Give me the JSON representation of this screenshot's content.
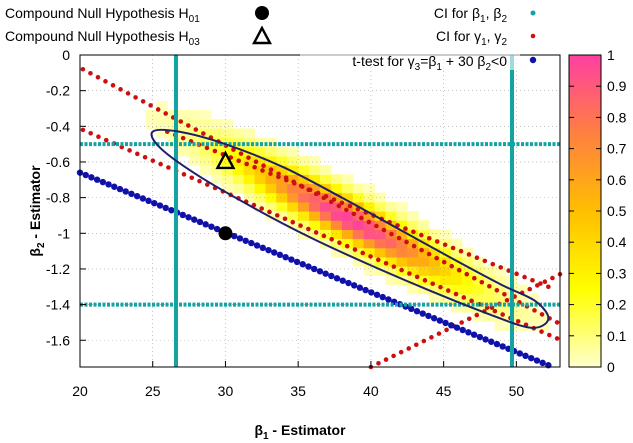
{
  "chart_data": {
    "type": "heatmap",
    "xlabel": "β₁ - Estimator",
    "ylabel": "β₂ - Estimator",
    "xlim": [
      20,
      53
    ],
    "ylim": [
      -1.75,
      0
    ],
    "xticks": [
      20,
      25,
      30,
      35,
      40,
      45,
      50
    ],
    "yticks": [
      0,
      -0.2,
      -0.4,
      -0.6,
      -0.8,
      -1,
      -1.2,
      -1.4,
      -1.6
    ],
    "grid": true,
    "colorbar": {
      "range": [
        0,
        1
      ],
      "ticks": [
        0,
        0.1,
        0.2,
        0.3,
        0.4,
        0.5,
        0.6,
        0.7,
        0.8,
        0.9,
        1
      ],
      "colors": [
        "#ffffcc",
        "#ffff00",
        "#ffbf00",
        "#ff8040",
        "#ff40a0"
      ]
    },
    "density": {
      "center": [
        38.5,
        -0.92
      ],
      "sd": [
        5.0,
        0.23
      ],
      "correlation": -0.93
    },
    "legend": [
      {
        "name": "Compound Null Hypothesis H",
        "sub": "01",
        "marker": "filled-circle",
        "color": "#000000"
      },
      {
        "name": "Compound Null Hypothesis H",
        "sub": "03",
        "marker": "open-triangle",
        "color": "#000000"
      },
      {
        "name": "CI for β",
        "sub": "1",
        "name2": ", β",
        "sub2": "2",
        "marker": "dot",
        "color": "#14a3a3"
      },
      {
        "name": "CI for γ",
        "sub": "1",
        "name2": ", γ",
        "sub2": "2",
        "marker": "dot",
        "color": "#cc1010"
      },
      {
        "name": "t-test for γ",
        "sub": "3",
        "name2": "=β",
        "sub2": "1",
        "name3": " + 30 β",
        "sub3": "2",
        "name4": "<0",
        "marker": "dot",
        "color": "#1010aa"
      }
    ],
    "points": {
      "H01": {
        "x": 30,
        "y": -1.0
      },
      "H03": {
        "x": 30,
        "y": -0.6
      }
    },
    "ci_beta": {
      "x": [
        26.6,
        49.7
      ],
      "y": [
        -1.4,
        -0.5
      ]
    },
    "ellipse": {
      "center": [
        38.5,
        -0.92
      ],
      "points": [
        [
          25.0,
          -0.43
        ],
        [
          26.8,
          -0.43
        ],
        [
          30.0,
          -0.5
        ],
        [
          34.0,
          -0.63
        ],
        [
          38.0,
          -0.8
        ],
        [
          42.0,
          -0.98
        ],
        [
          46.0,
          -1.16
        ],
        [
          49.0,
          -1.29
        ],
        [
          51.3,
          -1.38
        ],
        [
          52.2,
          -1.48
        ],
        [
          51.0,
          -1.53
        ],
        [
          48.0,
          -1.45
        ],
        [
          44.0,
          -1.32
        ],
        [
          40.0,
          -1.18
        ],
        [
          36.0,
          -1.03
        ],
        [
          32.0,
          -0.86
        ],
        [
          28.0,
          -0.67
        ],
        [
          25.5,
          -0.52
        ]
      ]
    },
    "gamma_lines": [
      {
        "x": [
          20.2,
          52.8
        ],
        "y": [
          -0.08,
          -1.5
        ]
      },
      {
        "x": [
          20.2,
          52.8
        ],
        "y": [
          -0.42,
          -1.59
        ]
      },
      {
        "x": [
          26.0,
          52.2
        ],
        "y": [
          -0.43,
          -1.3
        ]
      },
      {
        "x": [
          40.0,
          53.0
        ],
        "y": [
          -1.75,
          -1.23
        ]
      }
    ],
    "ttest_line": {
      "x": [
        20.0,
        52.2
      ],
      "y": [
        -0.66,
        -1.74
      ]
    }
  }
}
